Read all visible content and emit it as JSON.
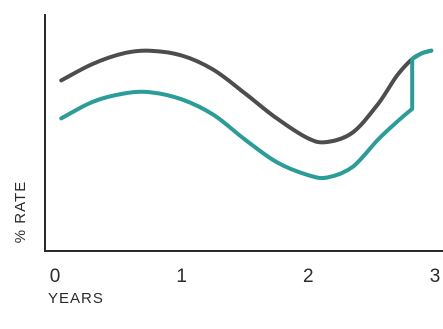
{
  "chart_data": {
    "type": "line",
    "title": "",
    "xlabel": "YEARS",
    "ylabel": "% RATE",
    "x_ticks": [
      0,
      1,
      2,
      3
    ],
    "xlim": [
      0,
      3
    ],
    "grid": false,
    "legend": "none",
    "series": [
      {
        "color": "#4d4d4f",
        "x": [
          0.05,
          0.3,
          0.55,
          0.75,
          1.0,
          1.25,
          1.5,
          1.75,
          2.0,
          2.15,
          2.35,
          2.55,
          2.7,
          2.82,
          2.9,
          2.97
        ],
        "values": [
          0.72,
          0.79,
          0.835,
          0.845,
          0.825,
          0.765,
          0.665,
          0.56,
          0.475,
          0.46,
          0.5,
          0.62,
          0.74,
          0.81,
          0.835,
          0.845
        ]
      },
      {
        "color": "#2a9d99",
        "x": [
          0.05,
          0.3,
          0.55,
          0.75,
          1.0,
          1.25,
          1.5,
          1.75,
          2.0,
          2.15,
          2.35,
          2.55,
          2.7,
          2.82,
          2.82,
          2.9,
          2.97
        ],
        "values": [
          0.56,
          0.63,
          0.665,
          0.67,
          0.64,
          0.575,
          0.47,
          0.375,
          0.32,
          0.31,
          0.355,
          0.47,
          0.545,
          0.6,
          0.81,
          0.835,
          0.845
        ]
      }
    ]
  }
}
